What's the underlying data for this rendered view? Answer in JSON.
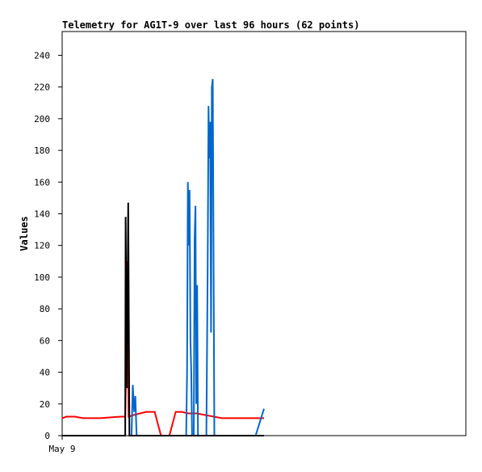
{
  "title": "Telemetry for AG1T-9 over last 96 hours (62 points)",
  "chart_data": {
    "type": "line",
    "title": "Telemetry for AG1T-9 over last 96 hours (62 points)",
    "ylabel": "Values",
    "xlabel": "",
    "xlim": [
      0,
      96
    ],
    "ylim": [
      0,
      255
    ],
    "yticks": [
      0,
      20,
      40,
      60,
      80,
      100,
      120,
      140,
      160,
      180,
      200,
      220,
      240
    ],
    "x_tick_labels": [
      {
        "x": 0,
        "label": "May 9"
      }
    ],
    "grid": false,
    "legend": "none",
    "series": [
      {
        "color": "#ff0000",
        "points": [
          [
            0,
            11
          ],
          [
            1,
            12
          ],
          [
            3,
            12
          ],
          [
            5,
            11
          ],
          [
            9,
            11
          ],
          [
            14,
            12
          ],
          [
            15,
            12
          ],
          [
            15.2,
            40
          ],
          [
            15.5,
            110
          ],
          [
            15.8,
            12
          ],
          [
            17,
            13
          ],
          [
            18.5,
            14
          ],
          [
            20,
            15
          ],
          [
            22,
            15
          ],
          [
            23.5,
            0
          ],
          [
            25.5,
            0
          ],
          [
            27,
            15
          ],
          [
            28.5,
            15
          ],
          [
            30,
            14
          ],
          [
            32,
            14
          ],
          [
            34,
            13
          ],
          [
            36,
            12
          ],
          [
            38,
            11
          ],
          [
            42,
            11
          ],
          [
            48,
            11
          ]
        ]
      },
      {
        "color": "#0066cc",
        "points": [
          [
            16.5,
            0
          ],
          [
            16.8,
            32
          ],
          [
            17.1,
            15
          ],
          [
            17.4,
            25
          ],
          [
            17.7,
            0
          ],
          [
            29.5,
            0
          ],
          [
            29.7,
            40
          ],
          [
            29.9,
            160
          ],
          [
            30.1,
            120
          ],
          [
            30.3,
            155
          ],
          [
            30.5,
            60
          ],
          [
            30.7,
            40
          ],
          [
            30.9,
            0
          ],
          [
            31.3,
            0
          ],
          [
            31.5,
            125
          ],
          [
            31.7,
            145
          ],
          [
            31.9,
            20
          ],
          [
            32.1,
            95
          ],
          [
            32.3,
            0
          ],
          [
            34.3,
            0
          ],
          [
            34.6,
            105
          ],
          [
            34.8,
            208
          ],
          [
            35.0,
            175
          ],
          [
            35.2,
            198
          ],
          [
            35.4,
            65
          ],
          [
            35.6,
            220
          ],
          [
            35.8,
            225
          ],
          [
            36.0,
            112
          ],
          [
            36.2,
            0
          ],
          [
            46,
            0
          ],
          [
            48,
            17
          ]
        ]
      },
      {
        "color": "#000000",
        "points": [
          [
            0,
            0
          ],
          [
            15,
            0
          ],
          [
            15.1,
            138
          ],
          [
            15.4,
            30
          ],
          [
            15.7,
            147
          ],
          [
            16.0,
            0
          ],
          [
            48,
            0
          ]
        ]
      }
    ]
  }
}
